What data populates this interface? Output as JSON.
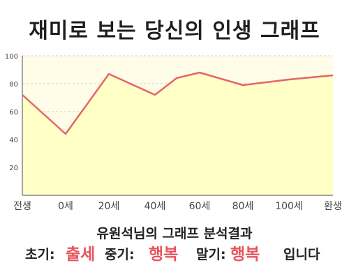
{
  "title": "재미로 보는 당신의 인생 그래프",
  "chart_data": {
    "type": "area",
    "title": "재미로 보는 당신의 인생 그래프",
    "xlabel": "",
    "ylabel": "",
    "x_ticks": [
      "전생",
      "0세",
      "20세",
      "40세",
      "60세",
      "80세",
      "100세",
      "환생"
    ],
    "y_ticks": [
      "20",
      "40",
      "60",
      "80",
      "100"
    ],
    "ylim": [
      0,
      100
    ],
    "grid": true,
    "legend": "none",
    "series": [
      {
        "x": [
          "전생",
          "0세",
          "20세",
          "40세",
          "50세",
          "60세",
          "80세",
          "100세",
          "환생"
        ],
        "values": [
          72,
          44,
          87,
          72,
          84,
          88,
          79,
          83,
          86
        ]
      }
    ],
    "colors": {
      "line": "#e36569",
      "fill": "#ffffc6",
      "plot_bg": "#fffde8",
      "grid": "#d0d0c0",
      "axis": "#888888"
    }
  },
  "result": {
    "heading": "유원석님의 그래프 분석결과",
    "early_label": "초기:",
    "early_value": "출세",
    "middle_label": "중기:",
    "middle_value": "행복",
    "late_label": "말기:",
    "late_value": "행복",
    "ending": "입니다"
  }
}
